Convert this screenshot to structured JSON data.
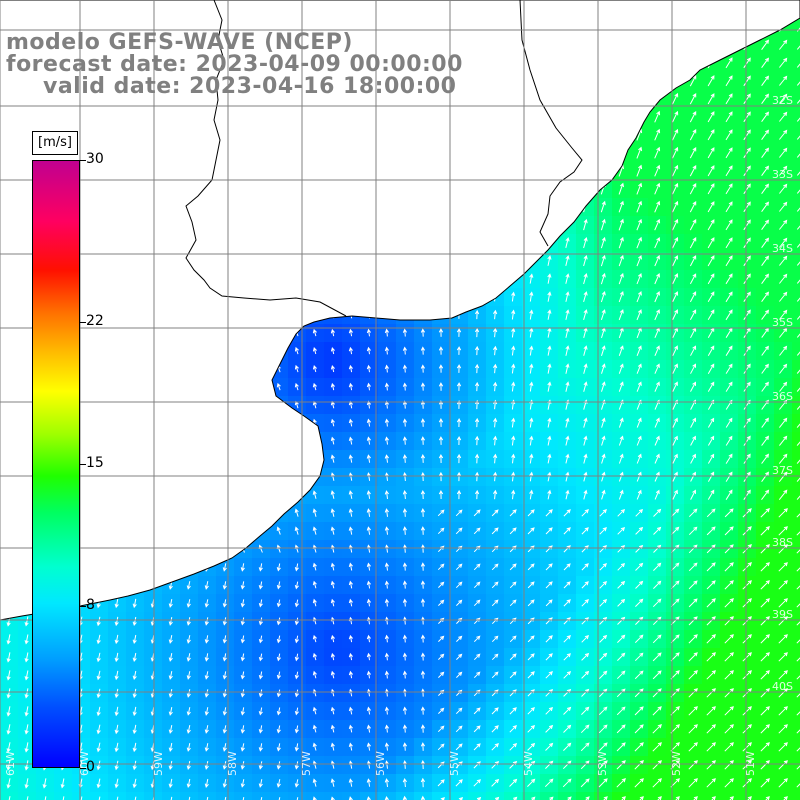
{
  "title": {
    "line1": "modelo GEFS-WAVE (NCEP)",
    "line2": "forecast date: 2023-04-09 00:00:00",
    "line3": "valid date: 2023-04-16 18:00:00"
  },
  "colorbar": {
    "unit": "[m/s]",
    "ticks": [
      "30",
      "22",
      "15",
      "8",
      "0"
    ],
    "tick_values": [
      30,
      22,
      15,
      8,
      0
    ],
    "colors": [
      "#0000ff",
      "#00a0ff",
      "#00ffe0",
      "#40ff00",
      "#ffff00",
      "#ff8000",
      "#ff0000",
      "#c00090"
    ]
  },
  "grid_labels": {
    "latitudes": [
      "32S",
      "33S",
      "34S",
      "35S",
      "36S",
      "37S",
      "38S",
      "39S",
      "40S"
    ],
    "longitudes": [
      "61W",
      "60W",
      "59W",
      "58W",
      "57W",
      "56W",
      "55W",
      "54W",
      "53W",
      "52W",
      "51W"
    ]
  },
  "colors": {
    "land": "#ffffff",
    "coast": "#000000",
    "grid": "#808080",
    "title": "#808080"
  }
}
